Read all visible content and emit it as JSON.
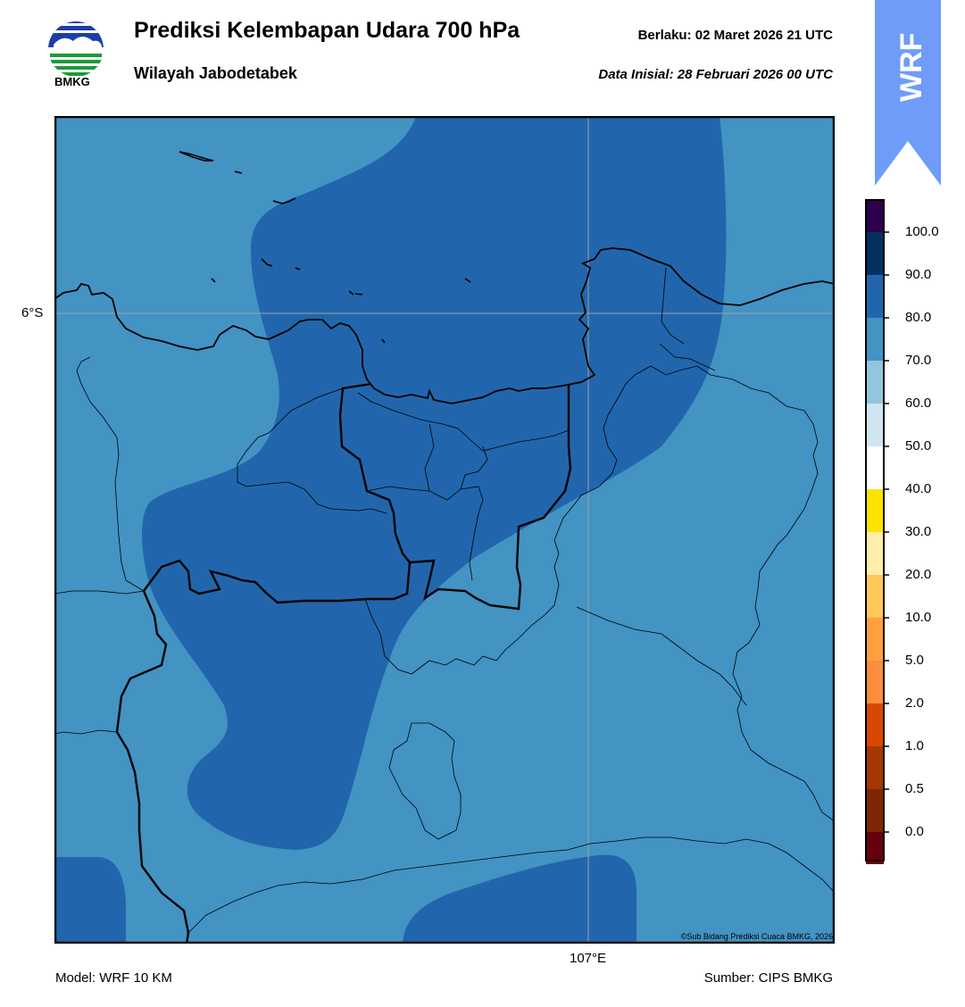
{
  "header": {
    "title": "Prediksi Kelembapan Udara 700 hPa",
    "subtitle": "Wilayah Jabodetabek",
    "valid_text": "Berlaku:  02 Maret 2026 21 UTC",
    "initial_text": "Data Inisial:  28 Februari 2026 00 UTC"
  },
  "logo": {
    "text": "BMKG",
    "icon": "bmkg-logo-icon"
  },
  "badge": {
    "text": "WRF",
    "color": "#6f9cf9"
  },
  "map": {
    "lat_label": "6°S",
    "lon_label": "107°E",
    "credit": "©Sub Bidang Prediksi Cuaca BMKG, 2026",
    "colors": {
      "humidity_70_80": "#4393c3",
      "humidity_80_90": "#2166ac"
    }
  },
  "colorbar": {
    "labels": [
      "100.0",
      "90.0",
      "80.0",
      "70.0",
      "60.0",
      "50.0",
      "40.0",
      "30.0",
      "20.0",
      "10.0",
      "5.0",
      "2.0",
      "1.0",
      "0.5",
      "0.0"
    ],
    "colors_top_to_bottom": [
      "#2d004b",
      "#053061",
      "#2166ac",
      "#4393c3",
      "#92c5de",
      "#d1e5f0",
      "#ffffff",
      "#ffe100",
      "#ffedaa",
      "#ffc65a",
      "#ffa040",
      "#fd8d3c",
      "#d94801",
      "#a63603",
      "#7f2704",
      "#67000d",
      "#c61a1d",
      "#e8432e"
    ]
  },
  "footer": {
    "model": "Model: WRF 10 KM",
    "source": "Sumber: CIPS BMKG"
  }
}
